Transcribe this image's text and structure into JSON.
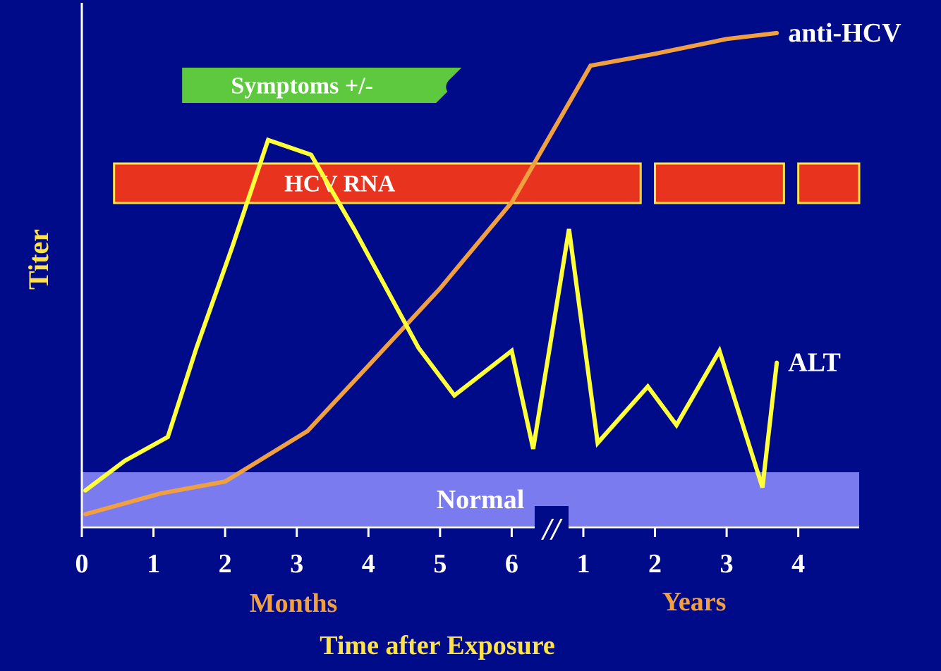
{
  "chart_data": {
    "type": "line",
    "title": "",
    "ylabel": "Titer",
    "xlabel": "Time after Exposure",
    "x_segments": [
      {
        "label": "Months",
        "ticks": [
          "0",
          "1",
          "2",
          "3",
          "4",
          "5",
          "6"
        ]
      },
      {
        "label": "Years",
        "ticks": [
          "1",
          "2",
          "3",
          "4"
        ]
      }
    ],
    "axis_break": "//",
    "bands": [
      {
        "name": "Symptoms +/-",
        "start": 1.4,
        "end": 5.3,
        "color": "#5ec93f",
        "text_color": "#ffffff"
      },
      {
        "name": "HCV RNA",
        "start": 0.45,
        "end": 7.8,
        "color": "#e8341f",
        "text_color": "#ffffff",
        "segments": [
          [
            0.45,
            7.8
          ],
          [
            8.0,
            9.8
          ],
          [
            10.0,
            10.85
          ]
        ]
      },
      {
        "name": "Normal",
        "start": 0,
        "end": 10.85,
        "color": "#7b7bf0",
        "text_color": "#ffffff"
      }
    ],
    "series": [
      {
        "name": "anti-HCV",
        "color": "#f0a040",
        "x": [
          0.05,
          1.1,
          2.0,
          3.15,
          4.0,
          5.0,
          6.0,
          7.1,
          8.0,
          9.0,
          9.7
        ],
        "y": [
          0.02,
          0.09,
          0.13,
          0.3,
          0.52,
          0.78,
          1.07,
          1.53,
          1.57,
          1.62,
          1.64
        ]
      },
      {
        "name": "ALT",
        "color": "#ffff3a",
        "x": [
          0.05,
          0.6,
          1.2,
          1.6,
          2.1,
          2.6,
          3.2,
          3.8,
          4.7,
          5.2,
          6.0,
          6.3,
          6.8,
          7.2,
          7.9,
          8.3,
          8.9,
          9.5,
          9.7
        ],
        "y": [
          0.1,
          0.2,
          0.28,
          0.58,
          0.92,
          1.28,
          1.23,
          0.98,
          0.58,
          0.42,
          0.57,
          0.24,
          0.98,
          0.26,
          0.45,
          0.32,
          0.57,
          0.11,
          0.53
        ]
      }
    ],
    "xlim": [
      0,
      10.85
    ],
    "ylim": [
      0,
      1.68
    ],
    "grid": false,
    "legend": "labels at series ends"
  }
}
